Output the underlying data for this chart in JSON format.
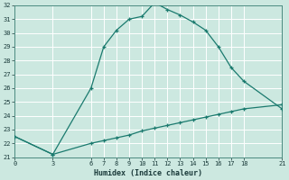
{
  "xlabel": "Humidex (Indice chaleur)",
  "bg_color": "#cce8e0",
  "grid_color": "#ffffff",
  "line_color": "#1a7a6e",
  "xlim": [
    0,
    21
  ],
  "ylim": [
    21,
    32
  ],
  "xticks": [
    0,
    3,
    6,
    7,
    8,
    9,
    10,
    11,
    12,
    13,
    14,
    15,
    16,
    17,
    18,
    21
  ],
  "yticks": [
    21,
    22,
    23,
    24,
    25,
    26,
    27,
    28,
    29,
    30,
    31,
    32
  ],
  "line1_x": [
    0,
    3,
    6,
    7,
    8,
    9,
    10,
    11,
    12,
    13,
    14,
    15,
    16,
    17,
    18,
    21
  ],
  "line1_y": [
    22.5,
    21.2,
    26.0,
    29.0,
    30.2,
    31.0,
    31.2,
    32.2,
    31.7,
    31.3,
    30.8,
    30.2,
    29.0,
    27.5,
    26.5,
    24.5
  ],
  "line2_x": [
    0,
    3,
    6,
    7,
    8,
    9,
    10,
    11,
    12,
    13,
    14,
    15,
    16,
    17,
    18,
    21
  ],
  "line2_y": [
    22.5,
    21.2,
    22.0,
    22.2,
    22.4,
    22.6,
    22.9,
    23.1,
    23.3,
    23.5,
    23.7,
    23.9,
    24.1,
    24.3,
    24.5,
    24.8
  ],
  "tick_fontsize": 5.0,
  "xlabel_fontsize": 6.0
}
